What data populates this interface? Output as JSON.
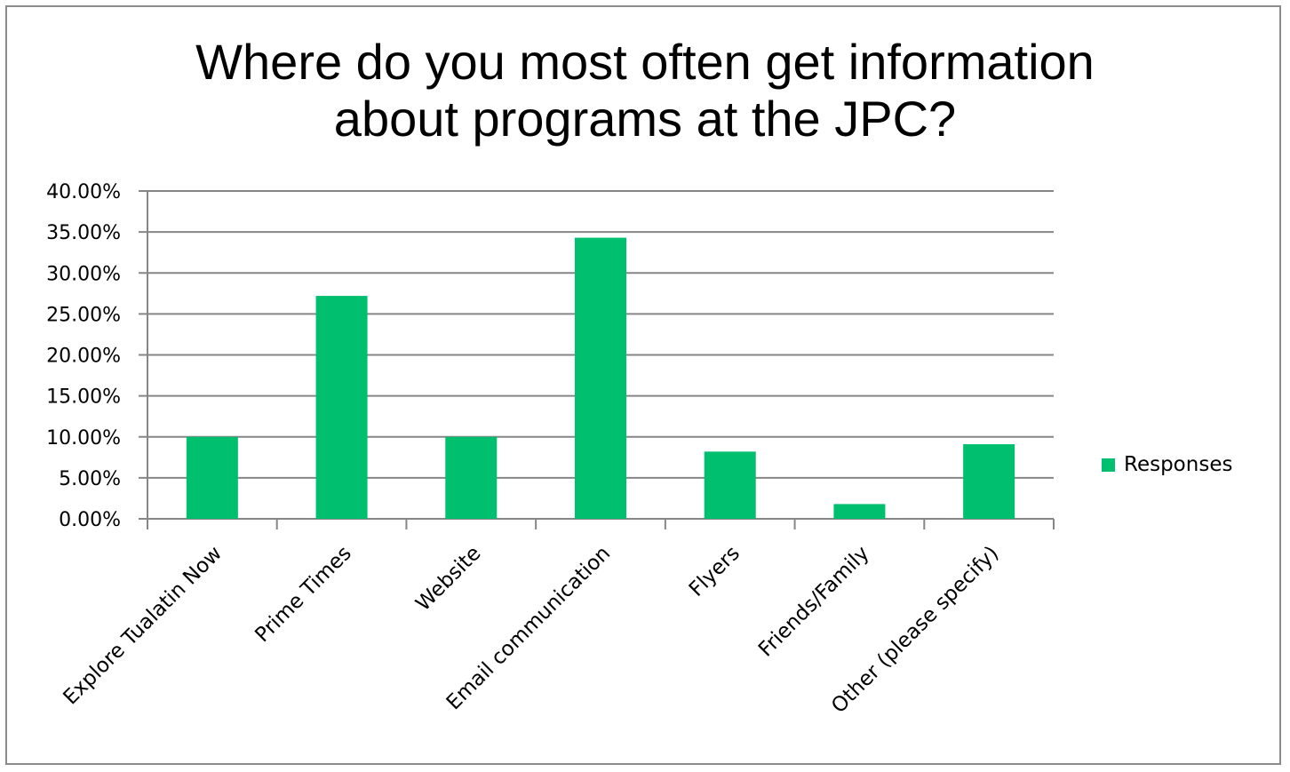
{
  "chart_data": {
    "type": "bar",
    "title_lines": [
      "Where do you most often get information",
      "about programs at the JPC?"
    ],
    "categories": [
      "Explore Tualatin Now",
      "Prime Times",
      "Website",
      "Email communication",
      "Flyers",
      "Friends/Family",
      "Other (please specify)"
    ],
    "series": [
      {
        "name": "Responses",
        "color": "#00bf6f",
        "values": [
          10.0,
          27.2,
          10.0,
          34.3,
          8.2,
          1.8,
          9.1
        ]
      }
    ],
    "y_ticks": [
      "0.00%",
      "5.00%",
      "10.00%",
      "15.00%",
      "20.00%",
      "25.00%",
      "30.00%",
      "35.00%",
      "40.00%"
    ],
    "ylim": [
      0,
      40
    ],
    "y_unit": "percent",
    "grid": "horizontal",
    "legend_position": "right"
  }
}
